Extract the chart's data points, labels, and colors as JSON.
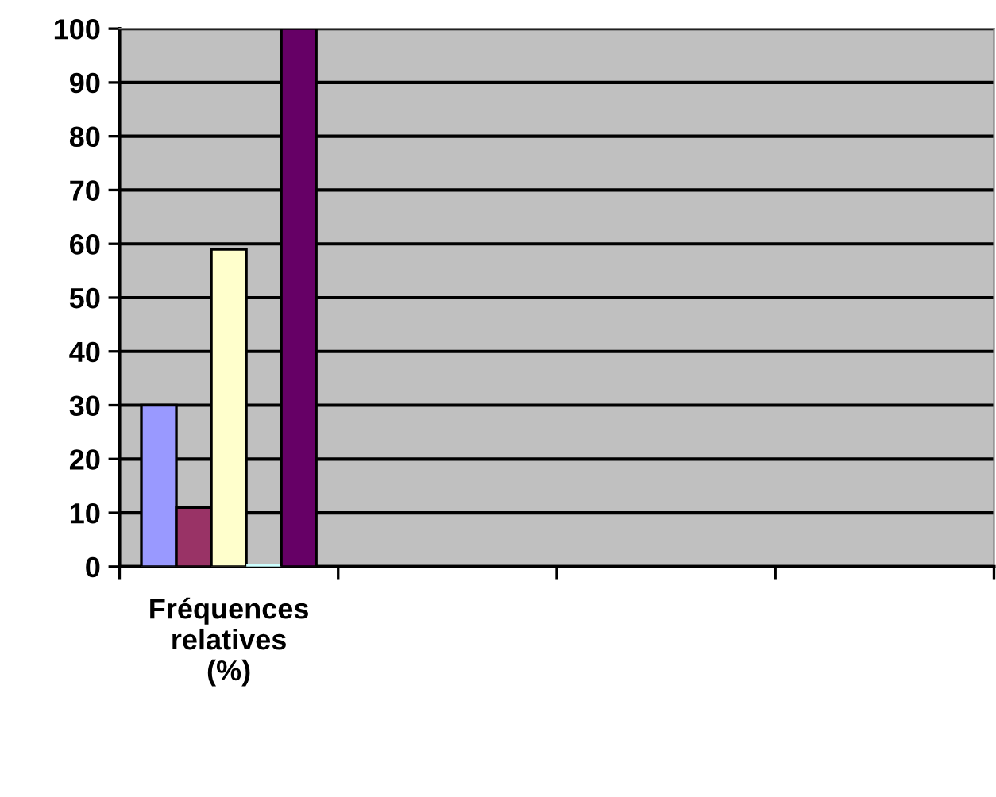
{
  "chart_data": {
    "type": "bar",
    "categories": [
      "Fréquences\nrelatives\n(%)",
      null,
      null,
      null
    ],
    "series": [
      {
        "color": "#9999ff",
        "values": [
          30,
          null,
          null,
          null
        ]
      },
      {
        "color": "#993366",
        "values": [
          11,
          null,
          null,
          null
        ]
      },
      {
        "color": "#ffffcc",
        "values": [
          59,
          null,
          null,
          null
        ]
      },
      {
        "color": "#ccffff",
        "values": [
          0,
          null,
          null,
          null
        ]
      },
      {
        "color": "#660066",
        "values": [
          100,
          null,
          null,
          null
        ]
      }
    ],
    "ylim": [
      0,
      100
    ],
    "yticks": [
      0,
      10,
      20,
      30,
      40,
      50,
      60,
      70,
      80,
      90,
      100
    ],
    "grid": "y",
    "legend": false
  }
}
